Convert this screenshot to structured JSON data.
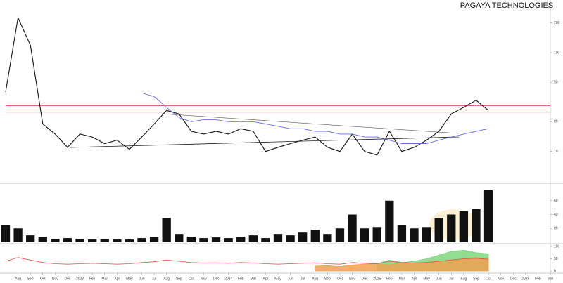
{
  "chart_data": [
    {
      "type": "line",
      "title": "PAGAYA TECHNOLOGIES",
      "log_scale": true,
      "x": [
        "2022-07",
        "2022-08",
        "2022-09",
        "2022-10",
        "2022-11",
        "2022-12",
        "2023-01",
        "2023-02",
        "2023-03",
        "2023-04",
        "2023-05",
        "2023-06",
        "2023-07",
        "2023-08",
        "2023-09",
        "2023-10",
        "2023-11",
        "2023-12",
        "2024-01",
        "2024-02",
        "2024-03",
        "2024-04",
        "2024-05",
        "2024-06",
        "2024-07",
        "2024-08",
        "2024-09",
        "2024-10",
        "2024-11",
        "2024-12",
        "2025-01",
        "2025-02",
        "2025-03",
        "2025-04",
        "2025-05",
        "2025-06",
        "2025-07",
        "2025-08",
        "2025-09",
        "2025-10"
      ],
      "xlim": [
        "2022-07",
        "2026-03"
      ],
      "series": [
        {
          "color": "#111111",
          "values": [
            40,
            226,
            119,
            19,
            15,
            11,
            15,
            14,
            12,
            13,
            10.5,
            14,
            19,
            26,
            24,
            16,
            15,
            16,
            15,
            17,
            16,
            10,
            11,
            12,
            13,
            14,
            11,
            10,
            15,
            10,
            9.2,
            16,
            10,
            11,
            13,
            16,
            24,
            28,
            33,
            26
          ]
        },
        {
          "color": "#6a6ae0",
          "values": [
            null,
            null,
            null,
            null,
            null,
            null,
            null,
            null,
            null,
            null,
            null,
            39,
            36,
            28,
            22,
            20,
            21,
            21,
            20,
            20,
            20,
            19,
            18,
            17,
            17,
            16,
            16,
            15,
            15,
            14,
            14,
            13,
            12,
            12,
            12,
            13,
            14,
            15,
            16,
            17
          ]
        }
      ],
      "hlines": [
        {
          "value": 29,
          "color": "#e03030"
        },
        {
          "value": 25,
          "color": "#e03030"
        }
      ],
      "ylim": [
        5,
        320
      ],
      "yticks": [
        10,
        20,
        50,
        100,
        200
      ]
    },
    {
      "type": "bar",
      "x": [
        "2022-07",
        "2022-08",
        "2022-09",
        "2022-10",
        "2022-11",
        "2022-12",
        "2023-01",
        "2023-02",
        "2023-03",
        "2023-04",
        "2023-05",
        "2023-06",
        "2023-07",
        "2023-08",
        "2023-09",
        "2023-10",
        "2023-11",
        "2023-12",
        "2024-01",
        "2024-02",
        "2024-03",
        "2024-04",
        "2024-05",
        "2024-06",
        "2024-07",
        "2024-08",
        "2024-09",
        "2024-10",
        "2024-11",
        "2024-12",
        "2025-01",
        "2025-02",
        "2025-03",
        "2025-04",
        "2025-05",
        "2025-06",
        "2025-07",
        "2025-08",
        "2025-09",
        "2025-10"
      ],
      "xlim": [
        "2022-07",
        "2026-03"
      ],
      "values": [
        25,
        20,
        10,
        8,
        5,
        6,
        5,
        4,
        5,
        4,
        4,
        6,
        8,
        35,
        12,
        8,
        6,
        7,
        6,
        8,
        10,
        6,
        12,
        10,
        14,
        18,
        12,
        20,
        40,
        20,
        22,
        60,
        25,
        20,
        22,
        35,
        40,
        45,
        48,
        75
      ],
      "color": "#111111",
      "ylim": [
        0,
        80
      ],
      "yticks": [
        20,
        40,
        60
      ]
    },
    {
      "type": "area",
      "x": [
        "2022-07",
        "2022-08",
        "2022-09",
        "2022-10",
        "2022-11",
        "2022-12",
        "2023-01",
        "2023-02",
        "2023-03",
        "2023-04",
        "2023-05",
        "2023-06",
        "2023-07",
        "2023-08",
        "2023-09",
        "2023-10",
        "2023-11",
        "2023-12",
        "2024-01",
        "2024-02",
        "2024-03",
        "2024-04",
        "2024-05",
        "2024-06",
        "2024-07",
        "2024-08",
        "2024-09",
        "2024-10",
        "2024-11",
        "2024-12",
        "2025-01",
        "2025-02",
        "2025-03",
        "2025-04",
        "2025-05",
        "2025-06",
        "2025-07",
        "2025-08",
        "2025-09",
        "2025-10"
      ],
      "xlim": [
        "2022-07",
        "2026-03"
      ],
      "series": [
        {
          "color": "#7fd67f",
          "fill": true,
          "values": [
            null,
            null,
            null,
            null,
            null,
            null,
            null,
            null,
            null,
            null,
            null,
            null,
            null,
            null,
            null,
            null,
            null,
            null,
            null,
            null,
            null,
            null,
            null,
            null,
            null,
            null,
            null,
            null,
            null,
            null,
            30,
            45,
            35,
            40,
            50,
            65,
            80,
            85,
            75,
            70
          ]
        },
        {
          "color": "#f0a050",
          "fill": true,
          "values": [
            null,
            null,
            null,
            null,
            null,
            null,
            null,
            null,
            null,
            null,
            null,
            null,
            null,
            null,
            null,
            null,
            null,
            null,
            null,
            null,
            null,
            null,
            null,
            null,
            null,
            20,
            22,
            18,
            25,
            28,
            30,
            25,
            35,
            30,
            32,
            40,
            45,
            50,
            55,
            48
          ]
        },
        {
          "color": "#e05050",
          "fill": false,
          "values": [
            40,
            55,
            45,
            35,
            30,
            28,
            30,
            32,
            30,
            28,
            30,
            35,
            38,
            45,
            40,
            35,
            33,
            34,
            32,
            35,
            33,
            30,
            28,
            30,
            32,
            34,
            30,
            28,
            35,
            32,
            30,
            40,
            35,
            33,
            35,
            40,
            45,
            50,
            52,
            48
          ]
        }
      ],
      "ylim": [
        0,
        100
      ],
      "yticks": [
        0,
        50,
        100
      ],
      "xticks": [
        {
          "value": "2022-08",
          "label": "Aug"
        },
        {
          "value": "2022-09",
          "label": "Sep"
        },
        {
          "value": "2022-10",
          "label": "Oct"
        },
        {
          "value": "2022-11",
          "label": "Nov"
        },
        {
          "value": "2022-12",
          "label": "Dec"
        },
        {
          "value": "2023-01",
          "label": "2023"
        },
        {
          "value": "2023-02",
          "label": "Feb"
        },
        {
          "value": "2023-03",
          "label": "Mar"
        },
        {
          "value": "2023-04",
          "label": "Apr"
        },
        {
          "value": "2023-05",
          "label": "May"
        },
        {
          "value": "2023-06",
          "label": "Jun"
        },
        {
          "value": "2023-07",
          "label": "Jul"
        },
        {
          "value": "2023-08",
          "label": "Aug"
        },
        {
          "value": "2023-09",
          "label": "Sep"
        },
        {
          "value": "2023-10",
          "label": "Oct"
        },
        {
          "value": "2023-11",
          "label": "Nov"
        },
        {
          "value": "2023-12",
          "label": "Dec"
        },
        {
          "value": "2024-01",
          "label": "2024"
        },
        {
          "value": "2024-02",
          "label": "Feb"
        },
        {
          "value": "2024-03",
          "label": "Mar"
        },
        {
          "value": "2024-04",
          "label": "Apr"
        },
        {
          "value": "2024-05",
          "label": "May"
        },
        {
          "value": "2024-06",
          "label": "Jun"
        },
        {
          "value": "2024-07",
          "label": "Jul"
        },
        {
          "value": "2024-08",
          "label": "Aug"
        },
        {
          "value": "2024-09",
          "label": "Sep"
        },
        {
          "value": "2024-10",
          "label": "Oct"
        },
        {
          "value": "2024-11",
          "label": "Nov"
        },
        {
          "value": "2024-12",
          "label": "Dec"
        },
        {
          "value": "2025-01",
          "label": "2025"
        },
        {
          "value": "2025-02",
          "label": "Feb"
        },
        {
          "value": "2025-03",
          "label": "Mar"
        },
        {
          "value": "2025-04",
          "label": "Apr"
        },
        {
          "value": "2025-05",
          "label": "May"
        },
        {
          "value": "2025-06",
          "label": "Jun"
        },
        {
          "value": "2025-07",
          "label": "Jul"
        },
        {
          "value": "2025-08",
          "label": "Aug"
        },
        {
          "value": "2025-09",
          "label": "Sep"
        },
        {
          "value": "2025-10",
          "label": "Oct"
        },
        {
          "value": "2025-11",
          "label": "Nov"
        },
        {
          "value": "2025-12",
          "label": "Dec"
        },
        {
          "value": "2026-01",
          "label": "2026"
        },
        {
          "value": "2026-02",
          "label": "Feb"
        },
        {
          "value": "2026-03",
          "label": "Mar"
        }
      ]
    }
  ]
}
